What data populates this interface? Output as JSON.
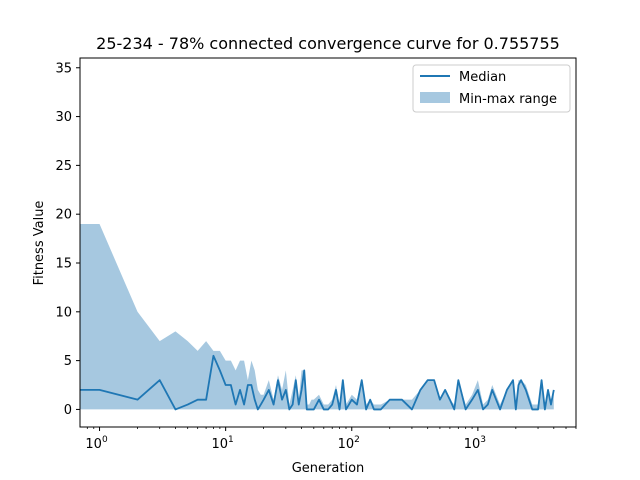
{
  "chart_data": {
    "type": "line",
    "title": "25-234 - 78% connected convergence curve for 0.755755",
    "xlabel": "Generation",
    "ylabel": "Fitness Value",
    "xscale": "log",
    "xlim": [
      0.7,
      6000
    ],
    "ylim": [
      -1.8,
      36
    ],
    "grid": false,
    "legend_position": "top-right",
    "x_ticks": [
      {
        "value": 1,
        "base": "10",
        "exp": "0"
      },
      {
        "value": 10,
        "base": "10",
        "exp": "1"
      },
      {
        "value": 100,
        "base": "10",
        "exp": "2"
      },
      {
        "value": 1000,
        "base": "10",
        "exp": "3"
      }
    ],
    "y_ticks": [
      0,
      5,
      10,
      15,
      20,
      25,
      30,
      35
    ],
    "series": [
      {
        "name": "Median",
        "kind": "line",
        "color": "#1f77b4",
        "x": [
          0,
          1,
          2,
          3,
          4,
          5,
          6,
          7,
          8,
          9,
          10,
          11,
          12,
          13,
          14,
          15,
          16,
          17,
          18,
          19,
          20,
          22,
          24,
          26,
          28,
          30,
          32,
          34,
          36,
          38,
          40,
          42,
          44,
          46,
          48,
          50,
          55,
          60,
          65,
          70,
          75,
          80,
          85,
          90,
          95,
          100,
          110,
          120,
          130,
          140,
          150,
          170,
          200,
          250,
          300,
          350,
          400,
          450,
          500,
          550,
          600,
          650,
          700,
          800,
          900,
          1000,
          1100,
          1200,
          1300,
          1500,
          1700,
          1900,
          2000,
          2100,
          2200,
          2400,
          2700,
          3000,
          3200,
          3400,
          3600,
          3800,
          4000
        ],
        "y": [
          2,
          2,
          1,
          3,
          0,
          0.5,
          1,
          1,
          5.5,
          4,
          2.5,
          2.5,
          0.5,
          2,
          0.5,
          2.5,
          2.5,
          1,
          0,
          0.5,
          1,
          2,
          0.5,
          3,
          1,
          2,
          0,
          0.5,
          3,
          0.5,
          2,
          4,
          0,
          0,
          0,
          0,
          1,
          0,
          0,
          0.5,
          2,
          0,
          3,
          0,
          0.5,
          1,
          0.5,
          3,
          0,
          1,
          0,
          0,
          1,
          1,
          0,
          2,
          3,
          3,
          1,
          2,
          1,
          0,
          3,
          0,
          1,
          2,
          0,
          0.5,
          2,
          0,
          2,
          3,
          0,
          2.5,
          3,
          2,
          0,
          0,
          3,
          0,
          2,
          0.5,
          2
        ]
      },
      {
        "name": "Min-max range",
        "kind": "band",
        "color": "#a6c8e0",
        "x": [
          0,
          1,
          2,
          3,
          4,
          5,
          6,
          7,
          8,
          9,
          10,
          11,
          12,
          13,
          14,
          15,
          16,
          17,
          18,
          19,
          20,
          22,
          24,
          26,
          28,
          30,
          32,
          34,
          36,
          38,
          40,
          42,
          44,
          46,
          48,
          50,
          55,
          60,
          65,
          70,
          75,
          80,
          85,
          90,
          95,
          100,
          110,
          120,
          130,
          140,
          150,
          170,
          200,
          250,
          300,
          350,
          400,
          450,
          500,
          550,
          600,
          650,
          700,
          800,
          900,
          1000,
          1100,
          1200,
          1300,
          1500,
          1700,
          1900,
          2000,
          2100,
          2200,
          2400,
          2700,
          3000,
          3200,
          3400,
          3600,
          3800,
          4000
        ],
        "ymin": [
          0,
          0,
          0,
          0,
          0,
          0,
          0,
          0,
          0,
          0,
          0,
          0,
          0,
          0,
          0,
          0,
          0,
          0,
          0,
          0,
          0,
          0,
          0,
          0,
          0,
          0,
          0,
          0,
          0,
          0,
          0,
          0,
          0,
          0,
          0,
          0,
          0,
          0,
          0,
          0,
          0,
          0,
          0,
          0,
          0,
          0,
          0,
          0,
          0,
          0,
          0,
          0,
          0,
          0,
          0,
          0,
          0,
          0,
          0,
          0,
          0,
          0,
          0,
          0,
          0,
          0,
          0,
          0,
          0,
          0,
          0,
          0,
          0,
          0,
          0,
          0,
          0,
          0,
          0,
          0,
          0,
          0,
          0
        ],
        "ymax": [
          19,
          19,
          10,
          7,
          8,
          7,
          6,
          7,
          6,
          6,
          5,
          5,
          4,
          5,
          5,
          3,
          5,
          4,
          2,
          1.5,
          1.5,
          3,
          1,
          3.5,
          2,
          4,
          0.5,
          2,
          3.5,
          1,
          4,
          4,
          0.5,
          0.5,
          1,
          1,
          1.5,
          0.5,
          0.5,
          1,
          2.5,
          0.5,
          3,
          0.5,
          1,
          1.5,
          1,
          3,
          0.5,
          1,
          0.5,
          0.5,
          1,
          1,
          1,
          2,
          3,
          3,
          1,
          2,
          1,
          0.5,
          3,
          0.5,
          1.5,
          3,
          0.5,
          1,
          2.5,
          0.5,
          2,
          3,
          0.5,
          3,
          3,
          2.5,
          0.5,
          0.5,
          3,
          0.5,
          2,
          1,
          2
        ]
      }
    ]
  }
}
